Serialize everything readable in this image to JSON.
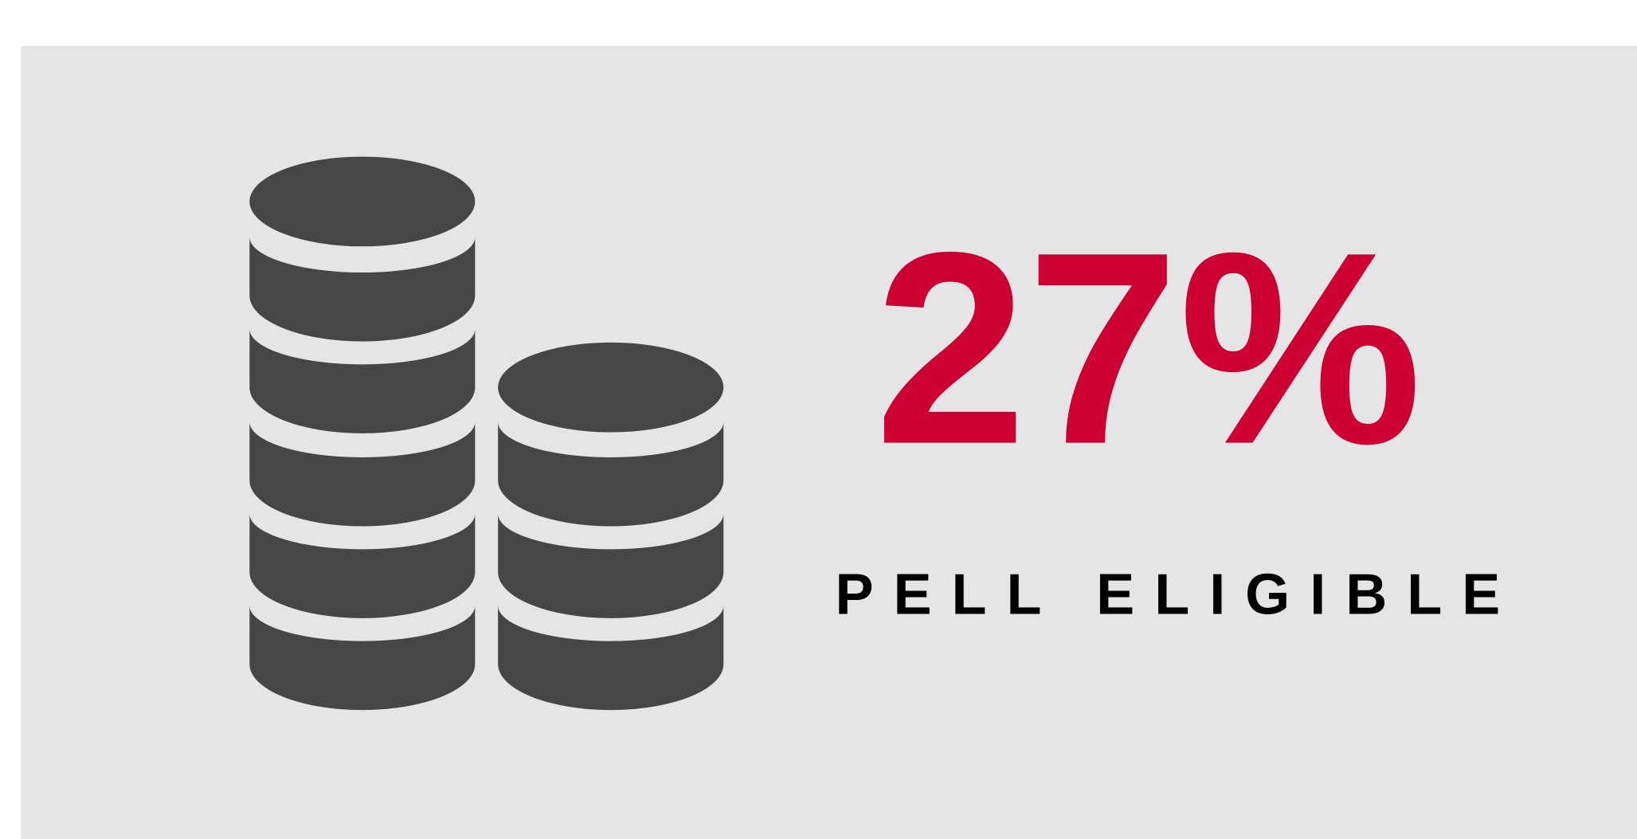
{
  "headline": "27%",
  "label": "PELL ELIGIBLE"
}
